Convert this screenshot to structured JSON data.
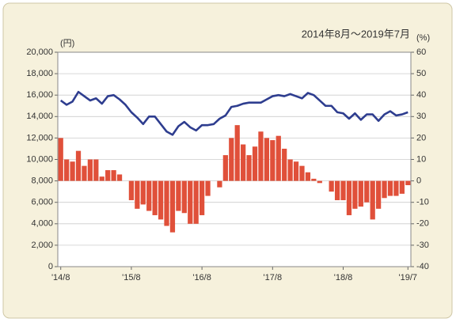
{
  "chart_data": {
    "type": "bar-line",
    "title": "2014年8月～2019年7月",
    "y_unit": "(円)",
    "y2_unit": "(%)",
    "categories": [
      "'14/8",
      null,
      null,
      null,
      null,
      null,
      null,
      null,
      null,
      null,
      null,
      null,
      "'15/8",
      null,
      null,
      null,
      null,
      null,
      null,
      null,
      null,
      null,
      null,
      null,
      "'16/8",
      null,
      null,
      null,
      null,
      null,
      null,
      null,
      null,
      null,
      null,
      null,
      "'17/8",
      null,
      null,
      null,
      null,
      null,
      null,
      null,
      null,
      null,
      null,
      null,
      "'18/8",
      null,
      null,
      null,
      null,
      null,
      null,
      null,
      null,
      null,
      null,
      "'19/7"
    ],
    "series": [
      {
        "type": "bar",
        "axis": "y2",
        "color": "#e0503a",
        "values": [
          20,
          10,
          9,
          14,
          7,
          10,
          10,
          2,
          5,
          5,
          3,
          0,
          -9,
          -13,
          -11,
          -14,
          -16,
          -18,
          -21,
          -24,
          -14,
          -15,
          -20,
          -20,
          -16,
          -7,
          0,
          -3,
          12,
          20,
          26,
          17,
          12,
          16,
          23,
          20,
          19,
          21,
          15,
          10,
          9,
          7,
          4,
          1,
          -1,
          0,
          -5,
          -9,
          -9,
          -16,
          -13,
          -12,
          -10,
          -18,
          -13,
          -8,
          -7,
          -7,
          -6,
          -2
        ]
      },
      {
        "type": "line",
        "axis": "y",
        "color": "#2e3d8f",
        "values": [
          15500,
          15100,
          15400,
          16300,
          15900,
          15500,
          15700,
          15200,
          15900,
          16000,
          15600,
          15100,
          14400,
          13900,
          13300,
          14000,
          14000,
          13300,
          12600,
          12300,
          13100,
          13500,
          13000,
          12700,
          13200,
          13200,
          13300,
          13800,
          14100,
          14900,
          15000,
          15200,
          15300,
          15300,
          15300,
          15600,
          15900,
          16000,
          15900,
          16100,
          15900,
          15700,
          16200,
          16000,
          15500,
          15000,
          15000,
          14400,
          14300,
          13800,
          14300,
          13700,
          14200,
          14200,
          13600,
          14200,
          14500,
          14100,
          14200,
          14400
        ]
      }
    ],
    "ylim": [
      0,
      20000
    ],
    "yticks": [
      0,
      {
        "value": 2000,
        "label": "2,000"
      },
      {
        "value": 4000,
        "label": "4,000"
      },
      {
        "value": 6000,
        "label": "6,000"
      },
      {
        "value": 8000,
        "label": "8,000"
      },
      {
        "value": 10000,
        "label": "10,000"
      },
      {
        "value": 12000,
        "label": "12,000"
      },
      {
        "value": 14000,
        "label": "14,000"
      },
      {
        "value": 16000,
        "label": "16,000"
      },
      {
        "value": 18000,
        "label": "18,000"
      },
      {
        "value": 20000,
        "label": "20,000"
      }
    ],
    "y2lim": [
      -40,
      60
    ],
    "y2ticks": [
      -40,
      -30,
      -20,
      -10,
      0,
      10,
      20,
      30,
      40,
      50,
      60
    ],
    "grid": true
  }
}
